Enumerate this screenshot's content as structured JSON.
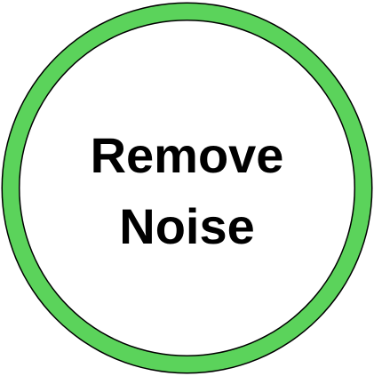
{
  "diagram": {
    "label_line_1": "Remove",
    "label_line_2": "Noise",
    "ring_color": "#5BD35B",
    "outline_color": "#000000",
    "fill_color": "#FFFFFF",
    "text_color": "#000000"
  }
}
